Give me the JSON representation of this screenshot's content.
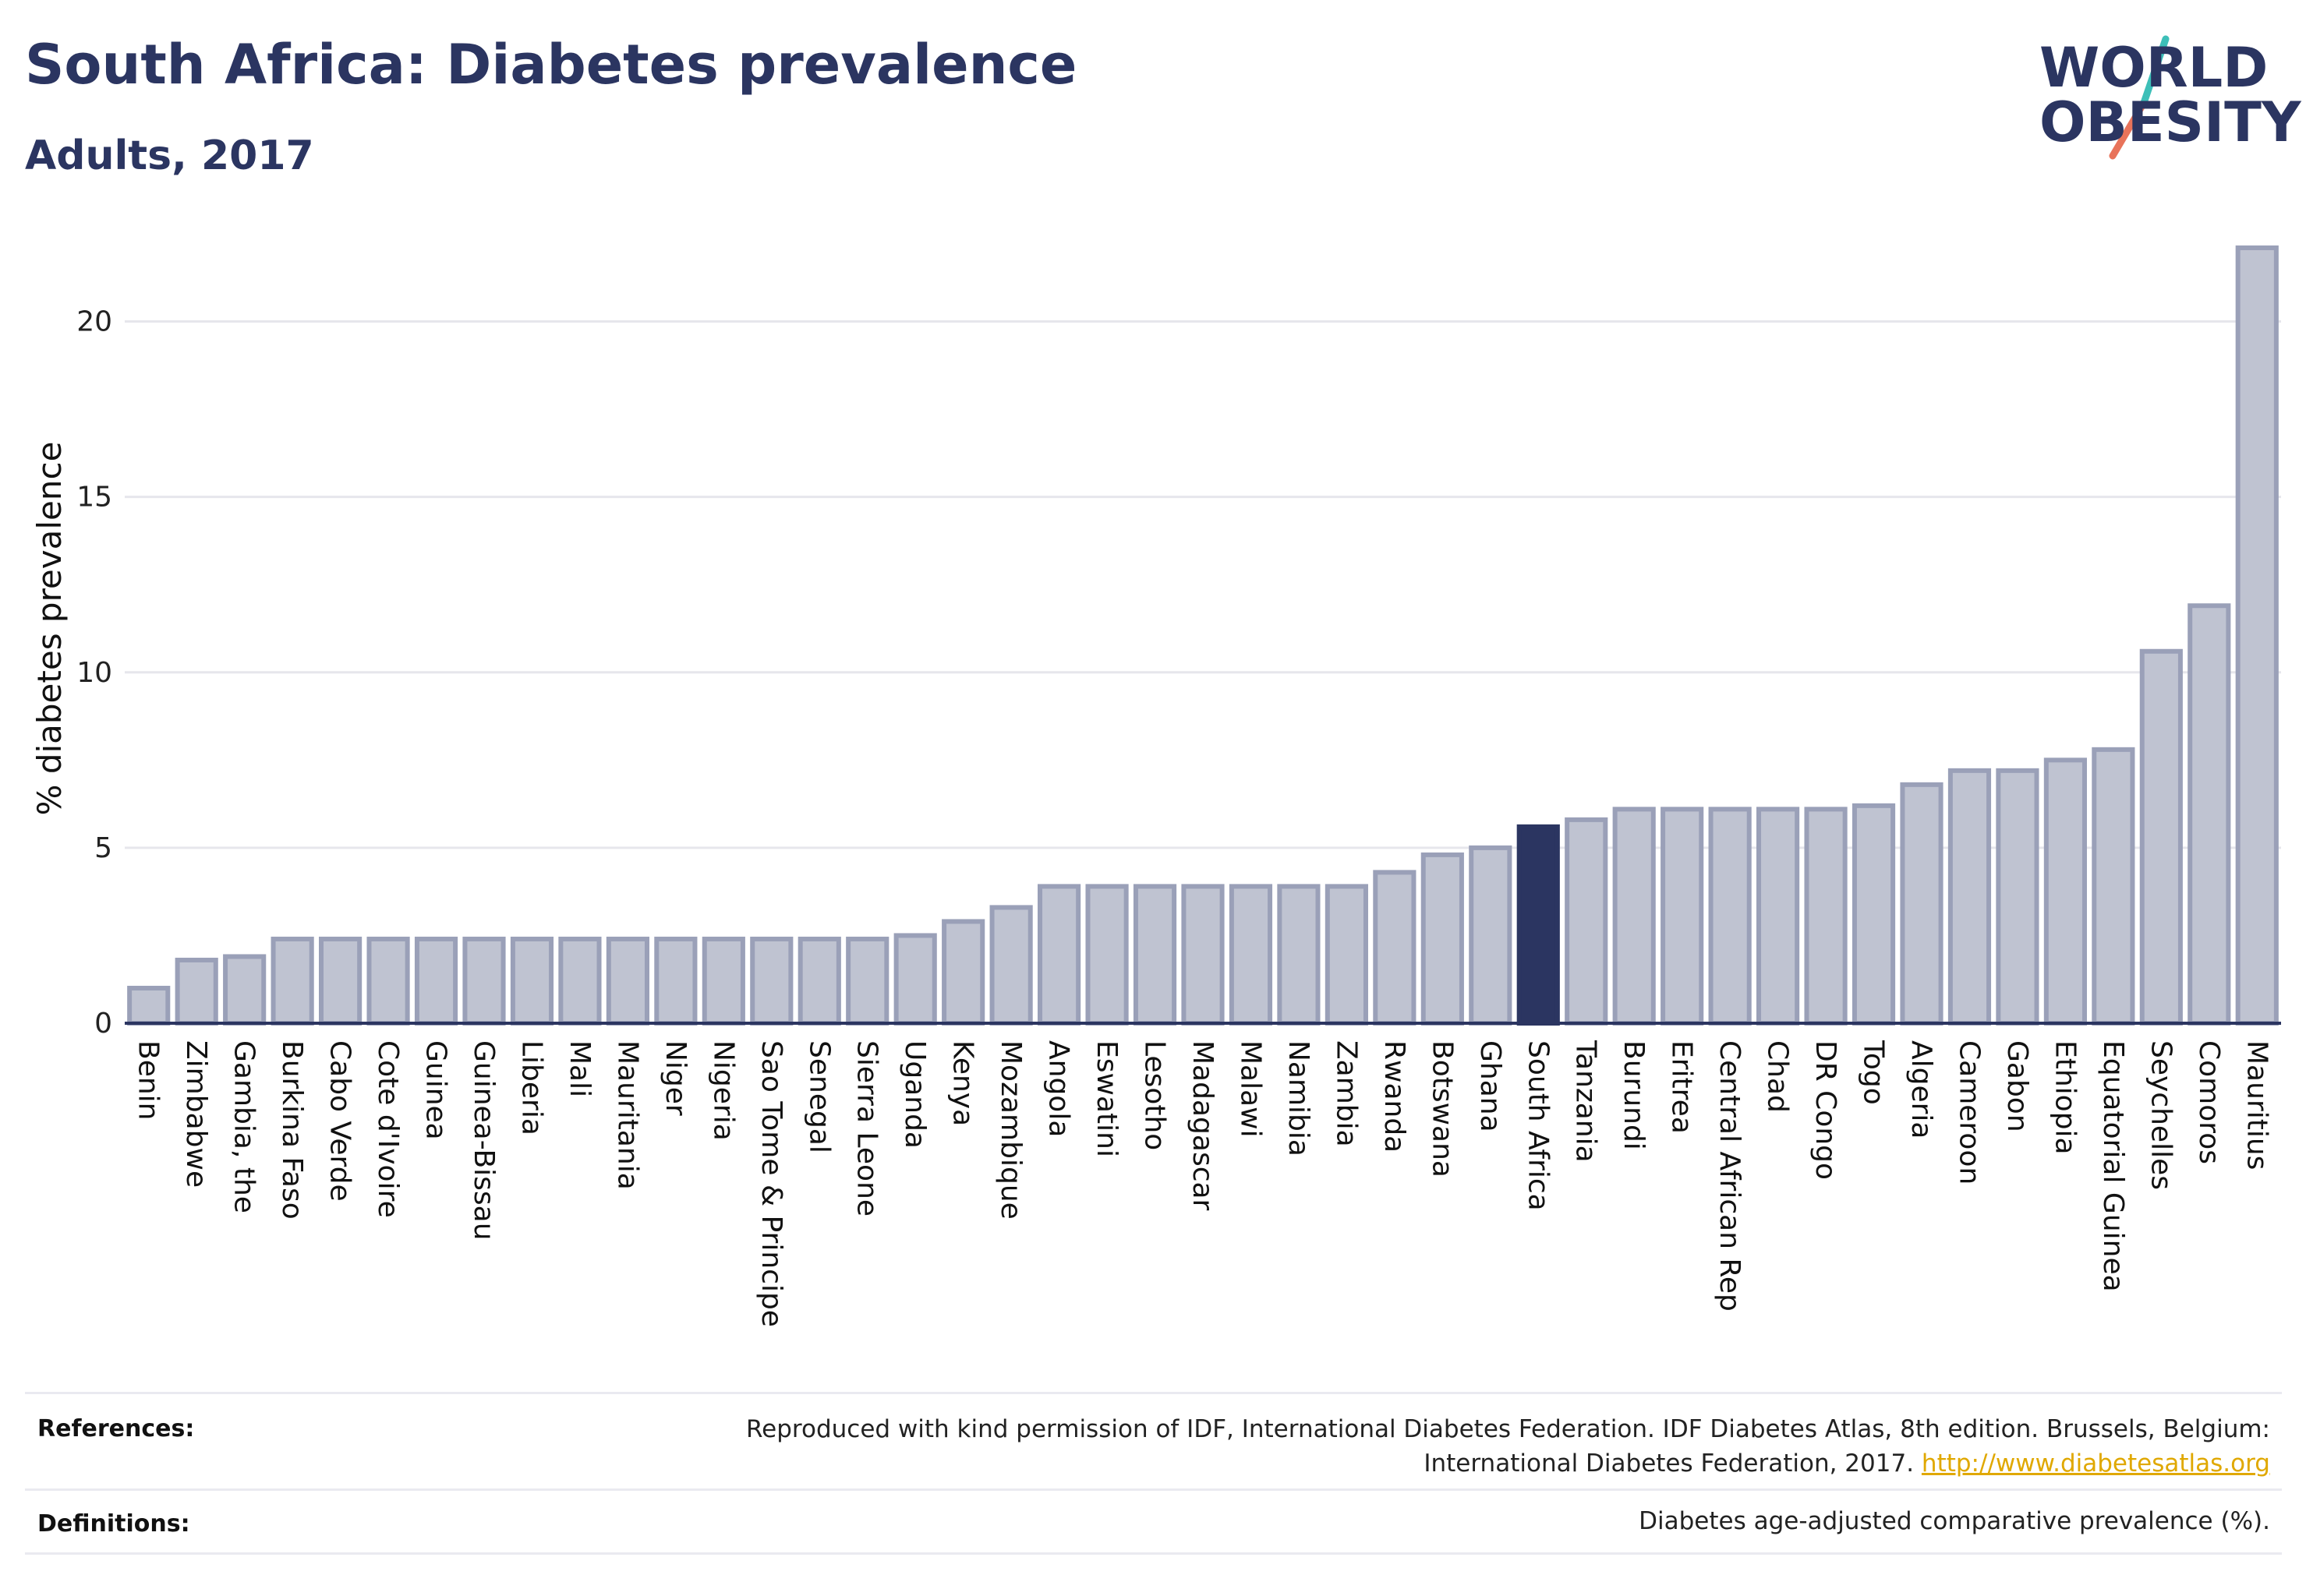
{
  "header": {
    "title": "South Africa: Diabetes prevalence",
    "subtitle": "Adults, 2017"
  },
  "logo": {
    "line1": "WORLD",
    "line2": "OBESITY"
  },
  "chart_data": {
    "type": "bar",
    "ylabel": "% diabetes prevalence",
    "xlabel": "",
    "ylim": [
      0,
      22.5
    ],
    "yticks": [
      0,
      5,
      10,
      15,
      20
    ],
    "grid": true,
    "highlight": "South Africa",
    "colors": {
      "bar": "#bfc3d1",
      "bar_stroke": "#9aa0b8",
      "highlight": "#2b3561",
      "grid": "#e6e6ec"
    },
    "categories": [
      "Benin",
      "Zimbabwe",
      "Gambia, the",
      "Burkina Faso",
      "Cabo Verde",
      "Cote d'Ivoire",
      "Guinea",
      "Guinea-Bissau",
      "Liberia",
      "Mali",
      "Mauritania",
      "Niger",
      "Nigeria",
      "Sao Tome & Principe",
      "Senegal",
      "Sierra Leone",
      "Uganda",
      "Kenya",
      "Mozambique",
      "Angola",
      "Eswatini",
      "Lesotho",
      "Madagascar",
      "Malawi",
      "Namibia",
      "Zambia",
      "Rwanda",
      "Botswana",
      "Ghana",
      "South Africa",
      "Tanzania",
      "Burundi",
      "Eritrea",
      "Central African Rep",
      "Chad",
      "DR Congo",
      "Togo",
      "Algeria",
      "Cameroon",
      "Gabon",
      "Ethiopia",
      "Equatorial Guinea",
      "Seychelles",
      "Comoros",
      "Mauritius"
    ],
    "values": [
      1.0,
      1.8,
      1.9,
      2.4,
      2.4,
      2.4,
      2.4,
      2.4,
      2.4,
      2.4,
      2.4,
      2.4,
      2.4,
      2.4,
      2.4,
      2.4,
      2.5,
      2.9,
      3.3,
      3.9,
      3.9,
      3.9,
      3.9,
      3.9,
      3.9,
      3.9,
      4.3,
      4.8,
      5.0,
      5.6,
      5.8,
      6.1,
      6.1,
      6.1,
      6.1,
      6.1,
      6.2,
      6.8,
      7.2,
      7.2,
      7.5,
      7.8,
      10.6,
      11.9,
      22.1
    ]
  },
  "footer": {
    "references_label": "References:",
    "references_line1": "Reproduced with kind permission of IDF, International Diabetes Federation. IDF Diabetes Atlas, 8th edition. Brussels, Belgium:",
    "references_line2": "International Diabetes Federation, 2017.",
    "references_link": "http://www.diabetesatlas.org",
    "definitions_label": "Definitions:",
    "definitions_text": "Diabetes age-adjusted comparative prevalence (%)."
  }
}
